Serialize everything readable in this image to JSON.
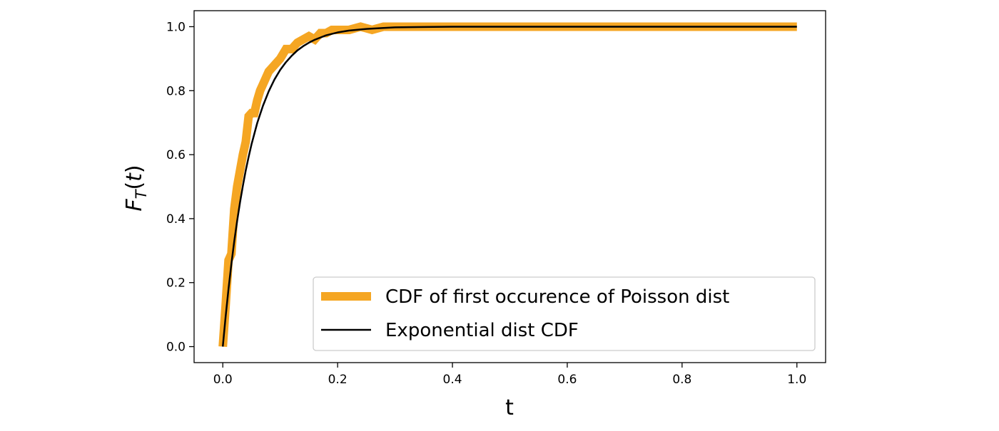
{
  "chart_data": {
    "type": "line",
    "title": "",
    "xlabel": "t",
    "ylabel": "F_T(t)",
    "xlim": [
      -0.05,
      1.05
    ],
    "ylim": [
      -0.05,
      1.05
    ],
    "xticks": [
      0.0,
      0.2,
      0.4,
      0.6,
      0.8,
      1.0
    ],
    "xtick_labels": [
      "0.0",
      "0.2",
      "0.4",
      "0.6",
      "0.8",
      "1.0"
    ],
    "yticks": [
      0.0,
      0.2,
      0.4,
      0.6,
      0.8,
      1.0
    ],
    "ytick_labels": [
      "0.0",
      "0.2",
      "0.4",
      "0.6",
      "0.8",
      "1.0"
    ],
    "grid": false,
    "legend_position": "lower-right",
    "series": [
      {
        "name": "CDF of first occurence of Poisson dist",
        "color": "#f5a623",
        "x": [
          0.0,
          0.005,
          0.01,
          0.015,
          0.02,
          0.025,
          0.03,
          0.035,
          0.04,
          0.045,
          0.05,
          0.055,
          0.06,
          0.065,
          0.07,
          0.075,
          0.08,
          0.085,
          0.09,
          0.095,
          0.1,
          0.11,
          0.12,
          0.13,
          0.14,
          0.15,
          0.16,
          0.17,
          0.18,
          0.19,
          0.2,
          0.22,
          0.24,
          0.26,
          0.28,
          0.3,
          0.32,
          0.35,
          0.4,
          0.45,
          0.5,
          0.6,
          0.7,
          0.8,
          0.9,
          1.0
        ],
        "y": [
          0.0,
          0.13,
          0.27,
          0.29,
          0.43,
          0.5,
          0.55,
          0.6,
          0.64,
          0.72,
          0.73,
          0.73,
          0.77,
          0.8,
          0.82,
          0.84,
          0.86,
          0.87,
          0.88,
          0.89,
          0.9,
          0.93,
          0.93,
          0.95,
          0.96,
          0.97,
          0.96,
          0.98,
          0.98,
          0.99,
          0.99,
          0.99,
          1.0,
          0.99,
          1.0,
          1.0,
          1.0,
          1.0,
          1.0,
          1.0,
          1.0,
          1.0,
          1.0,
          1.0,
          1.0,
          1.0
        ]
      },
      {
        "name": "Exponential dist CDF",
        "color": "#000000",
        "x": [
          0.0,
          0.005,
          0.01,
          0.015,
          0.02,
          0.025,
          0.03,
          0.035,
          0.04,
          0.045,
          0.05,
          0.06,
          0.07,
          0.08,
          0.09,
          0.1,
          0.11,
          0.12,
          0.13,
          0.14,
          0.15,
          0.16,
          0.18,
          0.2,
          0.22,
          0.25,
          0.28,
          0.3,
          0.35,
          0.4,
          0.5,
          0.6,
          0.7,
          0.8,
          0.9,
          1.0
        ],
        "y": [
          0.0,
          0.095,
          0.181,
          0.259,
          0.33,
          0.393,
          0.451,
          0.503,
          0.551,
          0.593,
          0.632,
          0.699,
          0.753,
          0.798,
          0.835,
          0.865,
          0.889,
          0.909,
          0.926,
          0.939,
          0.95,
          0.959,
          0.973,
          0.982,
          0.988,
          0.993,
          0.996,
          0.998,
          0.999,
          1.0,
          1.0,
          1.0,
          1.0,
          1.0,
          1.0,
          1.0
        ]
      }
    ]
  }
}
